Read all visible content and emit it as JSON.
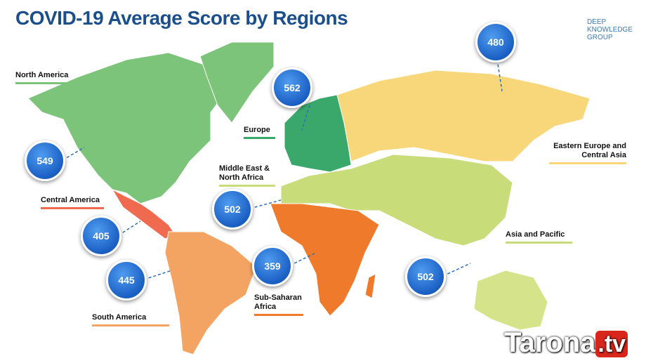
{
  "title": "COVID-19 Average Score by Regions",
  "logo": [
    "DEEP",
    "KNOWLEDGE",
    "GROUP"
  ],
  "regions": [
    {
      "name": "North America",
      "score": 549
    },
    {
      "name": "Europe",
      "score": 562
    },
    {
      "name": "Eastern Europe and Central Asia",
      "score": 480
    },
    {
      "name": "Middle East & North Africa",
      "score": 502
    },
    {
      "name": "Central America",
      "score": 405
    },
    {
      "name": "South America",
      "score": 445
    },
    {
      "name": "Sub-Saharan Africa",
      "score": 359
    },
    {
      "name": "Asia and Pacific",
      "score": 502
    }
  ],
  "watermark": [
    "Tarona",
    ".tv"
  ]
}
